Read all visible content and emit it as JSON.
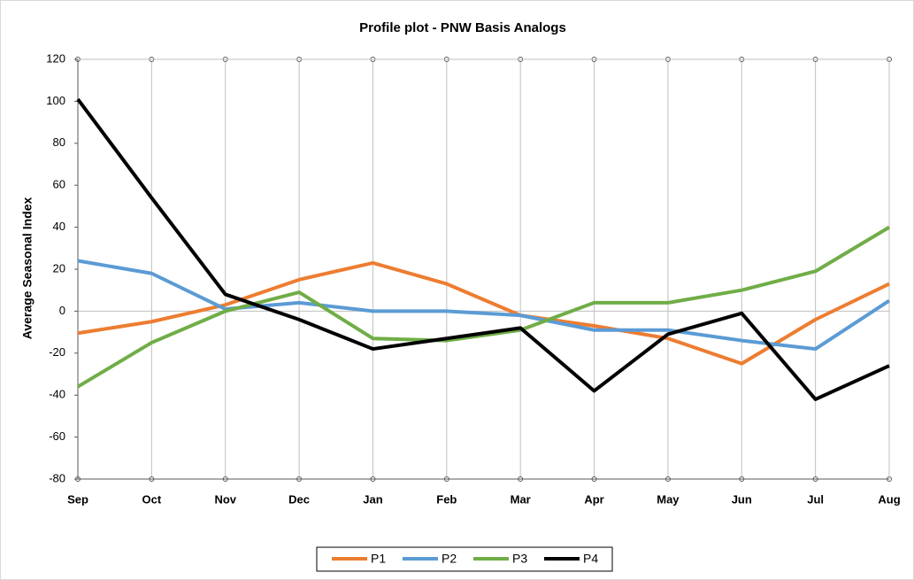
{
  "chart_data": {
    "type": "line",
    "title": "Profile plot - PNW Basis Analogs",
    "y_label": "Average Seasonal Index",
    "categories": [
      "Sep",
      "Oct",
      "Nov",
      "Dec",
      "Jan",
      "Feb",
      "Mar",
      "Apr",
      "May",
      "Jun",
      "Jul",
      "Aug"
    ],
    "series": [
      {
        "name": "P1",
        "color": "#ed7d31",
        "values": [
          -10.5,
          -5,
          3,
          15,
          23,
          13,
          -2,
          -7,
          -13,
          -25,
          -4,
          13
        ]
      },
      {
        "name": "P2",
        "color": "#5b9bd5",
        "values": [
          24,
          18,
          1,
          4,
          0,
          0,
          -2,
          -9,
          -9,
          -14,
          -18,
          5
        ]
      },
      {
        "name": "P3",
        "color": "#70ad47",
        "values": [
          -36,
          -15,
          0,
          9,
          -13,
          -14,
          -9,
          4,
          4,
          10,
          19,
          40
        ]
      },
      {
        "name": "P4",
        "color": "#000000",
        "values": [
          101,
          54,
          8,
          -4,
          -18,
          -13,
          -8,
          -38,
          -11,
          -1,
          -42,
          -26
        ]
      }
    ],
    "ylim": [
      -80,
      120
    ],
    "yticks": [
      -80,
      -60,
      -40,
      -20,
      0,
      20,
      40,
      60,
      80,
      100,
      120
    ],
    "grid": "x",
    "legend": "bottom"
  }
}
